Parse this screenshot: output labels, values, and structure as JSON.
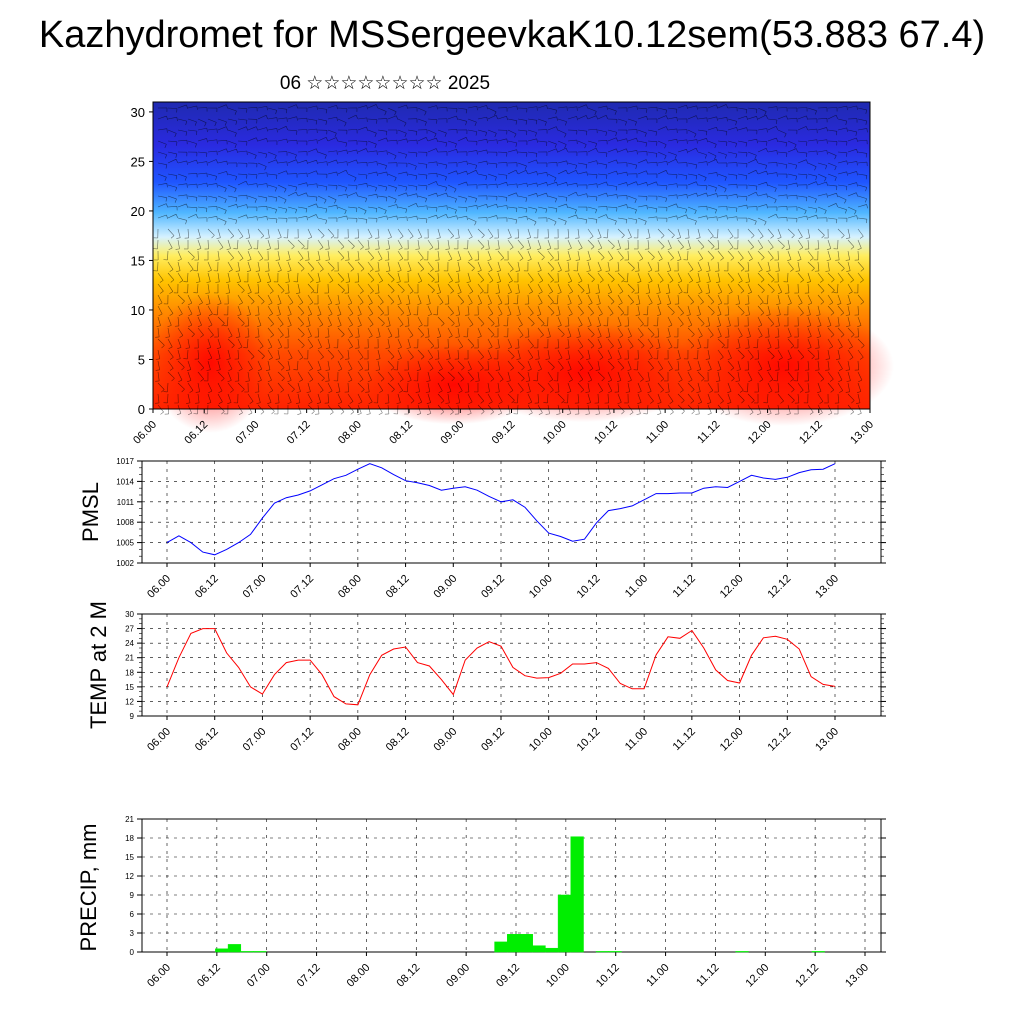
{
  "title": "Kazhydromet for MSSergeevkaK10.12sem(53.883 67.4)",
  "subtitle": "06 ☆☆☆☆☆☆☆☆ 2025",
  "colors": {
    "pmsl": "#0000ff",
    "temp": "#ff0000",
    "precip": "#00ee00",
    "hot": "#ff2a00",
    "cold": "#1a1aff"
  },
  "time_ticks": [
    "06.00",
    "06.12",
    "07.00",
    "07.12",
    "08.00",
    "08.12",
    "09.00",
    "09.12",
    "10.00",
    "10.12",
    "11.00",
    "11.12",
    "12.00",
    "12.12",
    "13.00"
  ],
  "chart_data": [
    {
      "type": "heatmap",
      "title": "",
      "xlabel": "",
      "ylabel": "",
      "x": [
        "06.00",
        "06.12",
        "07.00",
        "07.12",
        "08.00",
        "08.12",
        "09.00",
        "09.12",
        "10.00",
        "10.12",
        "11.00",
        "11.12",
        "12.00",
        "12.12",
        "13.00"
      ],
      "y_ticks": [
        0,
        5,
        10,
        15,
        20,
        25,
        30
      ],
      "ylim": [
        0,
        31
      ],
      "colormap": "blue (top) to yellow to red (bottom)",
      "overlay": "wind barbs"
    },
    {
      "type": "line",
      "ylabel": "PMSL",
      "ylim": [
        1002,
        1017
      ],
      "y_ticks": [
        1002,
        1005,
        1008,
        1011,
        1014,
        1017
      ],
      "x_ticks": [
        "06.00",
        "06.12",
        "07.00",
        "07.12",
        "08.00",
        "08.12",
        "09.00",
        "09.12",
        "10.00",
        "10.12",
        "11.00",
        "11.12",
        "12.00",
        "12.12",
        "13.00"
      ],
      "series": [
        {
          "values": [
            1005.0,
            1006.0,
            1005.0,
            1003.6,
            1003.2,
            1004.0,
            1005.0,
            1006.2,
            1008.6,
            1010.8,
            1011.6,
            1012.0,
            1012.6,
            1013.5,
            1014.4,
            1014.9,
            1015.8,
            1016.6,
            1016.0,
            1015.0,
            1014.1,
            1013.8,
            1013.4,
            1012.7,
            1013.0,
            1013.2,
            1012.7,
            1011.8,
            1011.0,
            1011.3,
            1010.2,
            1008.2,
            1006.4,
            1005.9,
            1005.2,
            1005.5,
            1007.9,
            1009.7,
            1010.0,
            1010.4,
            1011.3,
            1012.2,
            1012.2,
            1012.3,
            1012.3,
            1013.0,
            1013.2,
            1013.1,
            1014.0,
            1014.9,
            1014.5,
            1014.3,
            1014.6,
            1015.3,
            1015.7,
            1015.8,
            1016.6
          ]
        }
      ]
    },
    {
      "type": "line",
      "ylabel": "TEMP at 2 M",
      "ylim": [
        9,
        30
      ],
      "y_ticks": [
        9,
        12,
        15,
        18,
        21,
        24,
        27,
        30
      ],
      "x_ticks": [
        "06.00",
        "06.12",
        "07.00",
        "07.12",
        "08.00",
        "08.12",
        "09.00",
        "09.12",
        "10.00",
        "10.12",
        "11.00",
        "11.12",
        "12.00",
        "12.12",
        "13.00"
      ],
      "series": [
        {
          "values": [
            15.0,
            21.0,
            26.0,
            27.0,
            27.0,
            22.0,
            19.0,
            15.0,
            13.5,
            17.5,
            20.0,
            20.5,
            20.5,
            17.5,
            13.0,
            11.5,
            11.3,
            17.5,
            21.5,
            22.8,
            23.2,
            20.0,
            19.3,
            16.5,
            13.4,
            20.5,
            23.0,
            24.3,
            23.4,
            19.0,
            17.3,
            16.8,
            16.9,
            17.8,
            19.7,
            19.7,
            20.0,
            18.8,
            15.7,
            14.6,
            14.6,
            21.6,
            25.3,
            25.0,
            26.6,
            23.0,
            18.5,
            16.3,
            15.8,
            21.5,
            25.1,
            25.4,
            24.8,
            22.8,
            17.1,
            15.5,
            15.1
          ]
        }
      ]
    },
    {
      "type": "bar",
      "ylabel": "PRECIP, mm",
      "ylim": [
        0,
        21
      ],
      "y_ticks": [
        0,
        3,
        6,
        9,
        12,
        15,
        18,
        21
      ],
      "x_ticks": [
        "06.00",
        "06.12",
        "07.00",
        "07.12",
        "08.00",
        "08.12",
        "09.00",
        "09.12",
        "10.00",
        "10.12",
        "11.00",
        "11.12",
        "12.00",
        "12.12",
        "13.00"
      ],
      "values": [
        0,
        0,
        0,
        0,
        0.5,
        1.2,
        0.1,
        0.1,
        0,
        0,
        0,
        0,
        0,
        0,
        0,
        0,
        0,
        0,
        0,
        0,
        0,
        0,
        0,
        0,
        0,
        0,
        1.6,
        2.8,
        2.8,
        1.0,
        0.6,
        9.0,
        18.2,
        0,
        0.1,
        0.1,
        0,
        0,
        0,
        0,
        0,
        0,
        0,
        0,
        0,
        0.1,
        0,
        0,
        0,
        0,
        0,
        0.1,
        0,
        0,
        0,
        0
      ]
    }
  ]
}
